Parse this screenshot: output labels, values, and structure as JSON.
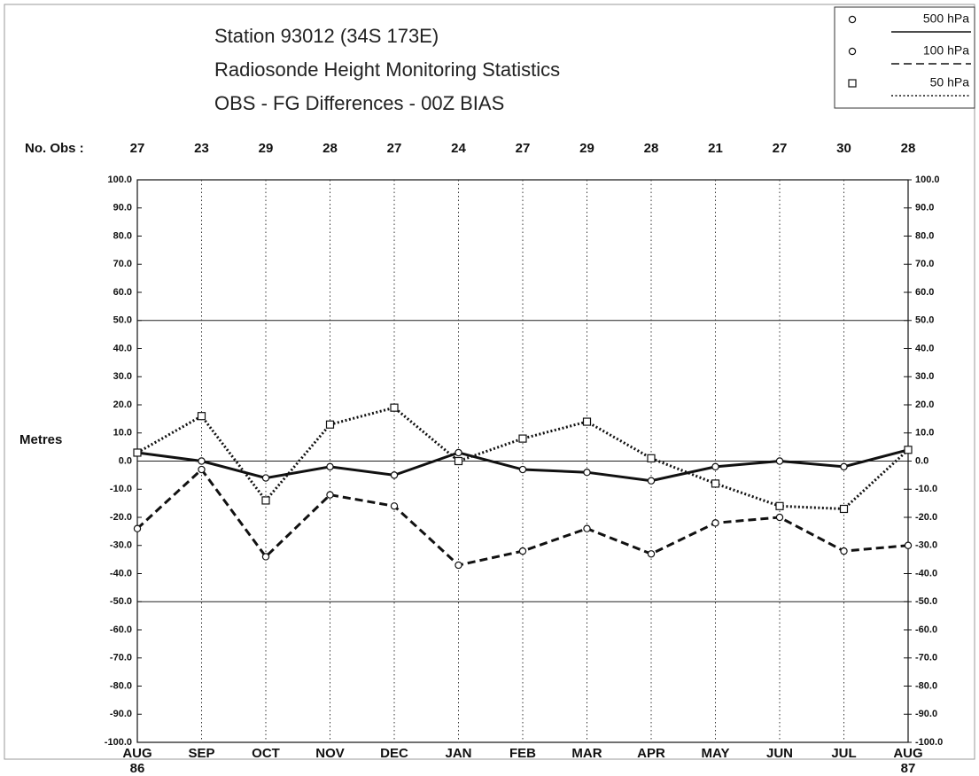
{
  "chart_data": {
    "type": "line",
    "title_lines": [
      "Station 93012 (34S 173E)",
      "Radiosonde Height Monitoring Statistics",
      "OBS - FG Differences - 00Z  BIAS"
    ],
    "y_label": "Metres",
    "obs_label": "No. Obs :",
    "obs_counts": [
      27,
      23,
      29,
      28,
      27,
      24,
      27,
      29,
      28,
      21,
      27,
      30,
      28
    ],
    "categories": [
      "AUG\n86",
      "SEP",
      "OCT",
      "NOV",
      "DEC",
      "JAN",
      "FEB",
      "MAR",
      "APR",
      "MAY",
      "JUN",
      "JUL",
      "AUG\n87"
    ],
    "ylim": [
      -100,
      100
    ],
    "yticks": [
      {
        "value": 100,
        "label": "100.0"
      },
      {
        "value": 90,
        "label": "90.0"
      },
      {
        "value": 80,
        "label": "80.0"
      },
      {
        "value": 70,
        "label": "70.0"
      },
      {
        "value": 60,
        "label": "60.0"
      },
      {
        "value": 50,
        "label": "50.0"
      },
      {
        "value": 40,
        "label": "40.0"
      },
      {
        "value": 30,
        "label": "30.0"
      },
      {
        "value": 20,
        "label": "20.0"
      },
      {
        "value": 10,
        "label": "10.0"
      },
      {
        "value": 0,
        "label": "0.0"
      },
      {
        "value": -10,
        "label": "-10.0"
      },
      {
        "value": -20,
        "label": "-20.0"
      },
      {
        "value": -30,
        "label": "-30.0"
      },
      {
        "value": -40,
        "label": "-40.0"
      },
      {
        "value": -50,
        "label": "-50.0"
      },
      {
        "value": -60,
        "label": "-60.0"
      },
      {
        "value": -70,
        "label": "-70.0"
      },
      {
        "value": -80,
        "label": "-80.0"
      },
      {
        "value": -90,
        "label": "-90.0"
      },
      {
        "value": -100,
        "label": "-100.0"
      }
    ],
    "reference_lines": [
      50,
      0,
      -50
    ],
    "series": [
      {
        "name": "500 hPa",
        "color": "#111111",
        "dash": "solid",
        "marker": "circle",
        "values": [
          3,
          0,
          -6,
          -2,
          -5,
          3,
          -3,
          -4,
          -7,
          -2,
          0,
          -2,
          4
        ]
      },
      {
        "name": "100 hPa",
        "color": "#111111",
        "dash": "dashed",
        "marker": "circle",
        "values": [
          -24,
          -3,
          -34,
          -12,
          -16,
          -37,
          -32,
          -24,
          -33,
          -22,
          -20,
          -32,
          -30
        ]
      },
      {
        "name": "50 hPa",
        "color": "#111111",
        "dash": "dotted",
        "marker": "square",
        "values": [
          3,
          16,
          -14,
          13,
          19,
          0,
          8,
          14,
          1,
          -8,
          -16,
          -17,
          4
        ]
      }
    ]
  }
}
